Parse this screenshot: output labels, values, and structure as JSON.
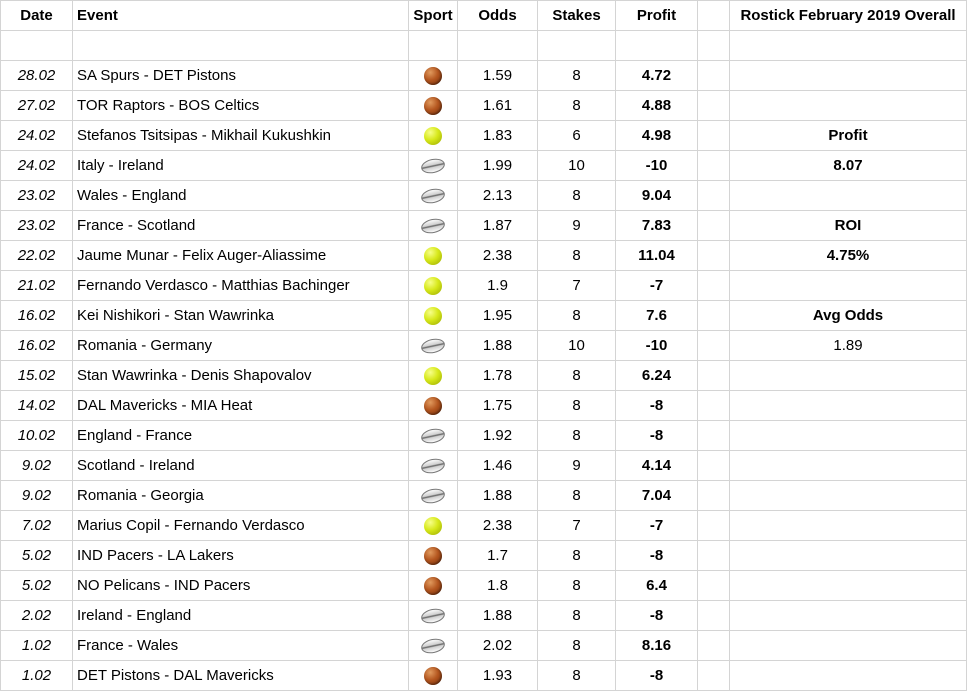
{
  "headers": {
    "date": "Date",
    "event": "Event",
    "sport": "Sport",
    "odds": "Odds",
    "stakes": "Stakes",
    "profit": "Profit",
    "overall": "Rostick February 2019 Overall"
  },
  "summary": {
    "profit_label": "Profit",
    "profit_value": "8.07",
    "roi_label": "ROI",
    "roi_value": "4.75%",
    "avg_odds_label": "Avg Odds",
    "avg_odds_value": "1.89"
  },
  "colors": {
    "positive": "#00b050",
    "negative": "#e00000"
  },
  "rows": [
    {
      "date": "28.02",
      "event": "SA Spurs - DET Pistons",
      "sport": "basketball-icon",
      "odds": "1.59",
      "stakes": "8",
      "profit": "4.72",
      "sign": "pos"
    },
    {
      "date": "27.02",
      "event": "TOR Raptors - BOS Celtics",
      "sport": "basketball-icon",
      "odds": "1.61",
      "stakes": "8",
      "profit": "4.88",
      "sign": "pos"
    },
    {
      "date": "24.02",
      "event": "Stefanos Tsitsipas - Mikhail Kukushkin",
      "sport": "tennis-ball-icon",
      "odds": "1.83",
      "stakes": "6",
      "profit": "4.98",
      "sign": "pos"
    },
    {
      "date": "24.02",
      "event": "Italy - Ireland",
      "sport": "rugby-ball-icon",
      "odds": "1.99",
      "stakes": "10",
      "profit": "-10",
      "sign": "neg"
    },
    {
      "date": "23.02",
      "event": "Wales - England",
      "sport": "rugby-ball-icon",
      "odds": "2.13",
      "stakes": "8",
      "profit": "9.04",
      "sign": "pos"
    },
    {
      "date": "23.02",
      "event": "France - Scotland",
      "sport": "rugby-ball-icon",
      "odds": "1.87",
      "stakes": "9",
      "profit": "7.83",
      "sign": "pos"
    },
    {
      "date": "22.02",
      "event": "Jaume Munar - Felix Auger-Aliassime",
      "sport": "tennis-ball-icon",
      "odds": "2.38",
      "stakes": "8",
      "profit": "11.04",
      "sign": "pos"
    },
    {
      "date": "21.02",
      "event": "Fernando Verdasco - Matthias Bachinger",
      "sport": "tennis-ball-icon",
      "odds": "1.9",
      "stakes": "7",
      "profit": "-7",
      "sign": "neg"
    },
    {
      "date": "16.02",
      "event": "Kei Nishikori - Stan Wawrinka",
      "sport": "tennis-ball-icon",
      "odds": "1.95",
      "stakes": "8",
      "profit": "7.6",
      "sign": "pos"
    },
    {
      "date": "16.02",
      "event": "Romania - Germany",
      "sport": "rugby-ball-icon",
      "odds": "1.88",
      "stakes": "10",
      "profit": "-10",
      "sign": "neg"
    },
    {
      "date": "15.02",
      "event": "Stan Wawrinka - Denis Shapovalov",
      "sport": "tennis-ball-icon",
      "odds": "1.78",
      "stakes": "8",
      "profit": "6.24",
      "sign": "pos"
    },
    {
      "date": "14.02",
      "event": "DAL Mavericks - MIA Heat",
      "sport": "basketball-icon",
      "odds": "1.75",
      "stakes": "8",
      "profit": "-8",
      "sign": "neg"
    },
    {
      "date": "10.02",
      "event": "England - France",
      "sport": "rugby-ball-icon",
      "odds": "1.92",
      "stakes": "8",
      "profit": "-8",
      "sign": "neg"
    },
    {
      "date": "9.02",
      "event": "Scotland - Ireland",
      "sport": "rugby-ball-icon",
      "odds": "1.46",
      "stakes": "9",
      "profit": "4.14",
      "sign": "pos"
    },
    {
      "date": "9.02",
      "event": "Romania - Georgia",
      "sport": "rugby-ball-icon",
      "odds": "1.88",
      "stakes": "8",
      "profit": "7.04",
      "sign": "pos"
    },
    {
      "date": "7.02",
      "event": "Marius Copil - Fernando Verdasco",
      "sport": "tennis-ball-icon",
      "odds": "2.38",
      "stakes": "7",
      "profit": "-7",
      "sign": "neg"
    },
    {
      "date": "5.02",
      "event": "IND Pacers - LA Lakers",
      "sport": "basketball-icon",
      "odds": "1.7",
      "stakes": "8",
      "profit": "-8",
      "sign": "neg"
    },
    {
      "date": "5.02",
      "event": "NO Pelicans - IND Pacers",
      "sport": "basketball-icon",
      "odds": "1.8",
      "stakes": "8",
      "profit": "6.4",
      "sign": "pos"
    },
    {
      "date": "2.02",
      "event": "Ireland - England",
      "sport": "rugby-ball-icon",
      "odds": "1.88",
      "stakes": "8",
      "profit": "-8",
      "sign": "neg"
    },
    {
      "date": "1.02",
      "event": "France - Wales",
      "sport": "rugby-ball-icon",
      "odds": "2.02",
      "stakes": "8",
      "profit": "8.16",
      "sign": "pos"
    },
    {
      "date": "1.02",
      "event": "DET Pistons - DAL Mavericks",
      "sport": "basketball-icon",
      "odds": "1.93",
      "stakes": "8",
      "profit": "-8",
      "sign": "neg"
    }
  ]
}
